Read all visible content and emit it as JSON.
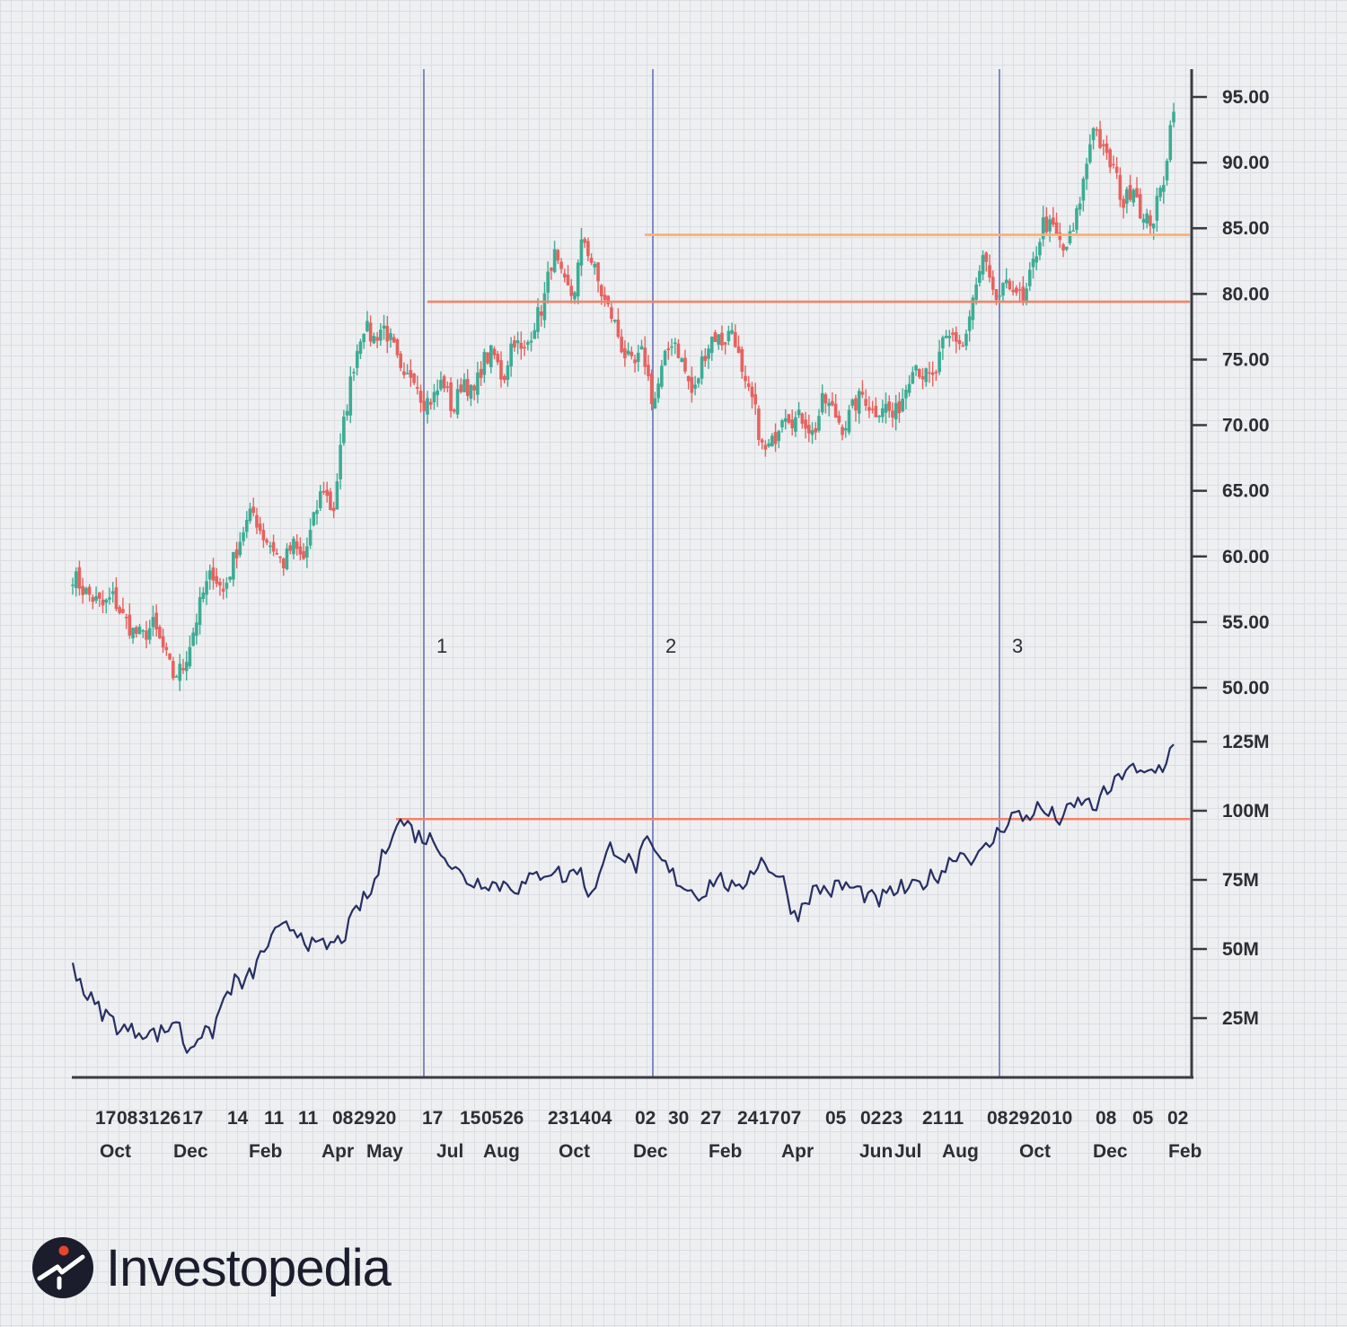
{
  "chart_data": {
    "type": "candlestick",
    "price_axis": {
      "ticks": [
        95,
        90,
        85,
        80,
        75,
        70,
        65,
        60,
        55,
        50
      ],
      "tick_labels": [
        "95.00",
        "90.00",
        "85.00",
        "80.00",
        "75.00",
        "70.00",
        "65.00",
        "60.00",
        "55.00",
        "50.00"
      ],
      "range": [
        47.9,
        97.0
      ]
    },
    "volume_axis": {
      "ticks": [
        125,
        100,
        75,
        50,
        25
      ],
      "tick_labels": [
        "125M",
        "100M",
        "75M",
        "50M",
        "25M"
      ],
      "range": [
        3.6,
        131.0
      ]
    },
    "x_day_labels": [
      "17",
      "08",
      "31",
      "26",
      "17",
      "14",
      "11",
      "11",
      "08",
      "29",
      "20",
      "17",
      "15",
      "05",
      "26",
      "23",
      "14",
      "04",
      "02",
      "30",
      "27",
      "24",
      "17",
      "07",
      "05",
      "02",
      "23",
      "21",
      "11",
      "08",
      "29",
      "20",
      "10",
      "08",
      "05",
      "02"
    ],
    "x_month_labels": [
      "Oct",
      "Dec",
      "Feb",
      "Apr",
      "May",
      "Jul",
      "Aug",
      "Oct",
      "Dec",
      "Feb",
      "Apr",
      "Jun",
      "Jul",
      "Aug",
      "Oct",
      "Dec",
      "Feb"
    ],
    "markers": [
      "1",
      "2",
      "3"
    ],
    "price_levels": [
      {
        "name": "resistance-low",
        "value": 79.4,
        "color": "#f0836b"
      },
      {
        "name": "resistance-high",
        "value": 84.5,
        "color": "#fbae6e"
      }
    ],
    "volume_levels": [
      {
        "name": "volume-resistance",
        "value": 97,
        "color": "#f0836b"
      }
    ],
    "price_path": [
      58.6,
      57.5,
      56.8,
      56.2,
      56.9,
      55.4,
      54.3,
      53.9,
      54.8,
      53.0,
      50.9,
      51.5,
      54.2,
      57.1,
      58.9,
      57.2,
      59.6,
      62.0,
      63.4,
      61.6,
      60.7,
      59.4,
      60.9,
      59.6,
      62.5,
      65.4,
      63.2,
      69.7,
      74.4,
      77.7,
      76.5,
      77.6,
      76.0,
      73.1,
      74.2,
      71.8,
      72.0,
      73.5,
      70.9,
      73.7,
      72.1,
      74.9,
      75.5,
      73.4,
      76.8,
      75.2,
      77.6,
      79.2,
      83.2,
      80.7,
      79.8,
      84.4,
      82.1,
      79.6,
      78.1,
      75.6,
      74.3,
      75.6,
      71.5,
      74.6,
      76.8,
      74.5,
      72.1,
      75.3,
      76.9,
      76.3,
      77.5,
      73.0,
      71.7,
      67.8,
      68.7,
      71.3,
      70.4,
      70.6,
      69.2,
      72.0,
      71.0,
      69.8,
      71.4,
      72.4,
      70.9,
      71.7,
      70.5,
      72.3,
      75.0,
      73.8,
      73.4,
      76.2,
      76.8,
      76.0,
      79.6,
      82.8,
      79.4,
      80.2,
      80.8,
      79.1,
      82.4,
      85.5,
      84.8,
      83.2,
      84.8,
      88.6,
      93.2,
      90.6,
      89.5,
      86.8,
      88.5,
      85.4,
      85.8,
      88.8,
      94.6
    ],
    "price_bull_color": "#3dac94",
    "price_bear_color": "#e6625f",
    "volume_path": [
      45,
      35,
      29,
      26,
      22,
      20,
      21,
      19,
      20,
      25,
      13,
      20,
      18,
      30,
      38,
      37,
      44,
      52,
      56,
      58,
      56,
      50,
      51,
      52,
      57,
      66,
      70,
      83,
      95,
      96,
      91,
      90,
      88,
      80,
      76,
      74,
      75,
      73,
      74,
      72,
      75,
      78,
      79,
      75,
      80,
      70,
      77,
      88,
      84,
      79,
      88,
      83,
      78,
      74,
      71,
      70,
      76,
      74,
      69,
      78,
      82,
      79,
      74,
      61,
      69,
      72,
      71,
      73,
      72,
      70,
      67,
      69,
      72,
      71,
      74,
      76,
      79,
      85,
      84,
      83,
      88,
      94,
      99,
      97,
      101,
      99,
      97,
      100,
      104,
      101,
      106,
      110,
      117,
      112,
      114,
      116,
      124
    ],
    "volume_line_color": "#262f64"
  },
  "brand": {
    "name": "Investopedia",
    "colors": {
      "dark": "#1b1d2c",
      "accent": "#e6442b"
    }
  },
  "colors": {
    "axis": "#3a3a40",
    "vertical_marker_line": "#7e8bc4",
    "tick_text": "#2d2d35"
  }
}
